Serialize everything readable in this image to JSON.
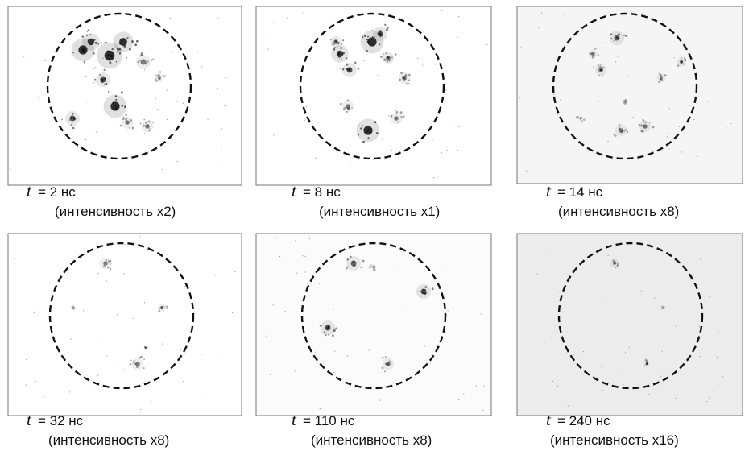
{
  "panels": [
    {
      "t_symbol": "t",
      "time": "= 2 нс",
      "intensity": "(интенсивность x2)"
    },
    {
      "t_symbol": "t",
      "time": "= 8 нс",
      "intensity": "(интенсивность x1)"
    },
    {
      "t_symbol": "t",
      "time": "= 14 нс",
      "intensity": "(интенсивность x8)"
    },
    {
      "t_symbol": "t",
      "time": "= 32 нс",
      "intensity": "(интенсивность x8)"
    },
    {
      "t_symbol": "t",
      "time": "= 110 нс",
      "intensity": "(интенсивность x8)"
    },
    {
      "t_symbol": "t",
      "time": "= 240 нс",
      "intensity": "(интенсивность x16)"
    }
  ]
}
